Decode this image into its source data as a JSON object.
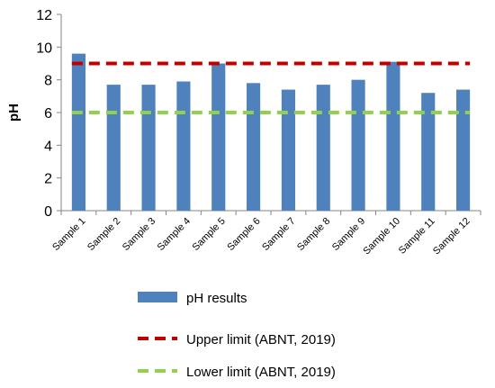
{
  "chart_data": {
    "type": "bar",
    "ylabel": "pH",
    "xlabel": "",
    "ylim": [
      0,
      12
    ],
    "yticks": [
      0,
      2,
      4,
      6,
      8,
      10,
      12
    ],
    "grid": false,
    "legend_position": "bottom",
    "categories": [
      "Sample 1",
      "Sample 2",
      "Sample 3",
      "Sample 4",
      "Sample 5",
      "Sample 6",
      "Sample 7",
      "Sample 8",
      "Sample 9",
      "Sample 10",
      "Sample 11",
      "Sample 12"
    ],
    "series": [
      {
        "name": "pH results",
        "type": "bar",
        "color": "#4f81bd",
        "values": [
          9.6,
          7.7,
          7.7,
          7.9,
          9.0,
          7.8,
          7.4,
          7.7,
          8.0,
          9.1,
          7.2,
          7.4
        ]
      }
    ],
    "reference_lines": [
      {
        "name": "Upper limit (ABNT, 2019)",
        "value": 9,
        "color": "#c00000",
        "style": "dashed"
      },
      {
        "name": "Lower limit (ABNT, 2019)",
        "value": 6,
        "color": "#92d050",
        "style": "dashed"
      }
    ]
  }
}
